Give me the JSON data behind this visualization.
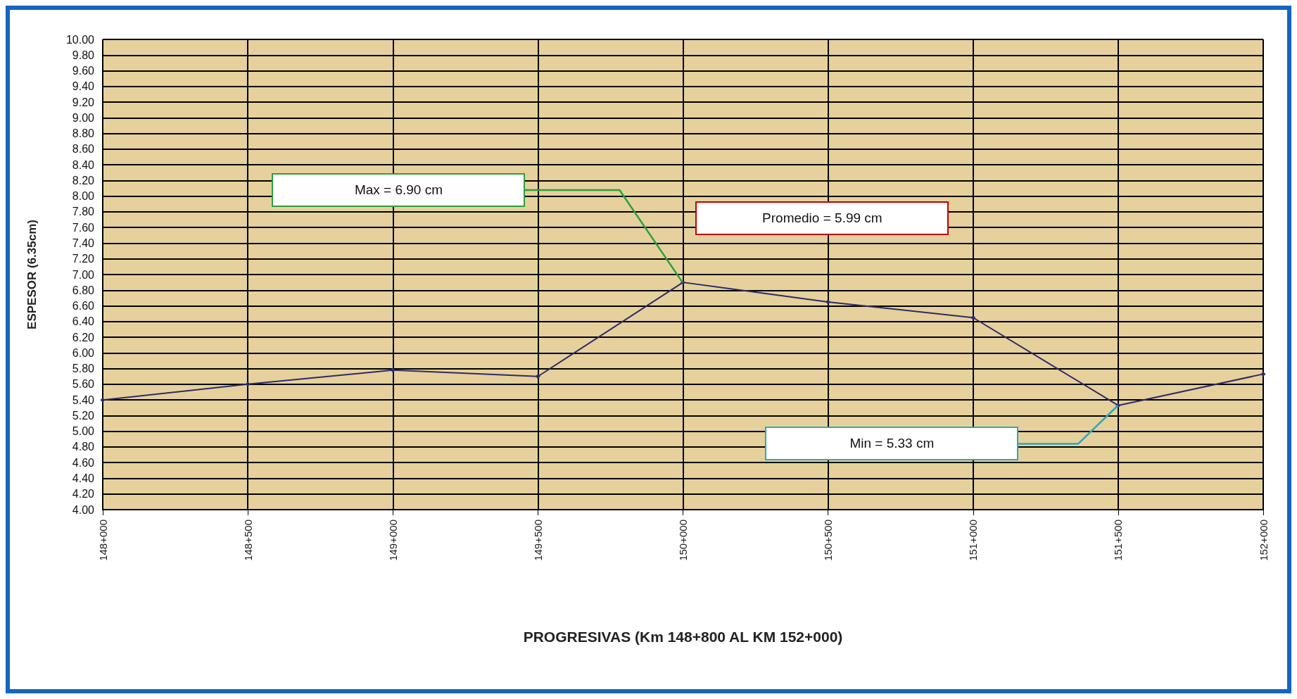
{
  "chart_data": {
    "type": "line",
    "xlabel": "PROGRESIVAS (Km 148+800 AL KM 152+000)",
    "ylabel": "ESPESOR (6.35cm)",
    "categories": [
      "148+000",
      "148+500",
      "149+000",
      "149+500",
      "150+000",
      "150+500",
      "151+000",
      "151+500",
      "152+000"
    ],
    "series": [
      {
        "color": "#2e2a6b",
        "values": [
          5.4,
          5.6,
          5.78,
          5.7,
          6.9,
          6.65,
          6.45,
          5.33,
          5.73
        ]
      }
    ],
    "ylim": [
      4,
      10
    ],
    "yticks": [
      {
        "value": 4,
        "label": "4.00"
      },
      {
        "value": 4.2,
        "label": "4.20"
      },
      {
        "value": 4.4,
        "label": "4.40"
      },
      {
        "value": 4.6,
        "label": "4.60"
      },
      {
        "value": 4.8,
        "label": "4.80"
      },
      {
        "value": 5,
        "label": "5.00"
      },
      {
        "value": 5.2,
        "label": "5.20"
      },
      {
        "value": 5.4,
        "label": "5.40"
      },
      {
        "value": 5.6,
        "label": "5.60"
      },
      {
        "value": 5.8,
        "label": "5.80"
      },
      {
        "value": 6,
        "label": "6.00"
      },
      {
        "value": 6.2,
        "label": "6.20"
      },
      {
        "value": 6.4,
        "label": "6.40"
      },
      {
        "value": 6.6,
        "label": "6.60"
      },
      {
        "value": 6.8,
        "label": "6.80"
      },
      {
        "value": 7,
        "label": "7.00"
      },
      {
        "value": 7.2,
        "label": "7.20"
      },
      {
        "value": 7.4,
        "label": "7.40"
      },
      {
        "value": 7.6,
        "label": "7.60"
      },
      {
        "value": 7.8,
        "label": "7.80"
      },
      {
        "value": 8,
        "label": "8.00"
      },
      {
        "value": 8.2,
        "label": "8.20"
      },
      {
        "value": 8.4,
        "label": "8.40"
      },
      {
        "value": 8.6,
        "label": "8.60"
      },
      {
        "value": 8.8,
        "label": "8.80"
      },
      {
        "value": 9,
        "label": "9.00"
      },
      {
        "value": 9.2,
        "label": "9.20"
      },
      {
        "value": 9.4,
        "label": "9.40"
      },
      {
        "value": 9.6,
        "label": "9.60"
      },
      {
        "value": 9.8,
        "label": "9.80"
      },
      {
        "value": 10,
        "label": "10.00"
      }
    ],
    "grid": true,
    "marker": "diamond",
    "line_style": "solid",
    "annotations": [
      "Max =  6.90 cm",
      "Promedio = 5.99 cm",
      "Min = 5.33 cm"
    ]
  }
}
